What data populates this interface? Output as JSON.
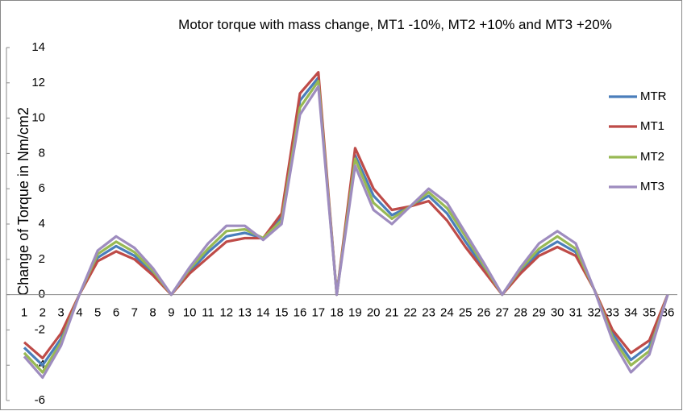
{
  "chart_data": {
    "type": "line",
    "title": "Motor torque with mass change, MT1 -10%, MT2 +10% and MT3 +20%",
    "y_label": "Change of Torque in Nm/cm2",
    "categories": [
      "1",
      "2",
      "3",
      "4",
      "5",
      "6",
      "7",
      "8",
      "9",
      "10",
      "11",
      "12",
      "13",
      "14",
      "15",
      "16",
      "17",
      "18",
      "19",
      "20",
      "21",
      "22",
      "23",
      "24",
      "25",
      "26",
      "27",
      "28",
      "29",
      "30",
      "31",
      "32",
      "33",
      "34",
      "35",
      "36"
    ],
    "series": [
      {
        "name": "MTR",
        "color": "#4a7ebb",
        "values": [
          -3.0,
          -4.0,
          -2.5,
          0,
          2.1,
          2.75,
          2.2,
          1.2,
          0,
          1.3,
          2.4,
          3.3,
          3.5,
          3.2,
          4.4,
          11.0,
          12.3,
          0,
          7.9,
          5.6,
          4.5,
          5.0,
          5.6,
          4.6,
          3.0,
          1.5,
          0,
          1.3,
          2.4,
          3.0,
          2.4,
          0.3,
          -2.2,
          -3.7,
          -2.9,
          0
        ]
      },
      {
        "name": "MT1",
        "color": "#be4b48",
        "values": [
          -2.7,
          -3.6,
          -2.2,
          0,
          1.9,
          2.45,
          2.0,
          1.1,
          0,
          1.2,
          2.1,
          3.0,
          3.2,
          3.2,
          4.6,
          11.4,
          12.6,
          0,
          8.3,
          6.0,
          4.8,
          5.0,
          5.3,
          4.2,
          2.7,
          1.35,
          0,
          1.2,
          2.2,
          2.7,
          2.2,
          0.3,
          -2.0,
          -3.3,
          -2.6,
          0
        ]
      },
      {
        "name": "MT2",
        "color": "#98b954",
        "values": [
          -3.3,
          -4.4,
          -2.7,
          0,
          2.3,
          3.0,
          2.4,
          1.35,
          0,
          1.45,
          2.6,
          3.6,
          3.7,
          3.2,
          4.2,
          10.6,
          12.1,
          0,
          7.7,
          5.2,
          4.3,
          5.0,
          5.8,
          4.9,
          3.3,
          1.65,
          0,
          1.45,
          2.6,
          3.3,
          2.6,
          0.3,
          -2.4,
          -4.0,
          -3.2,
          0
        ]
      },
      {
        "name": "MT3",
        "color": "#9e8cbf",
        "values": [
          -3.5,
          -4.7,
          -2.9,
          0,
          2.5,
          3.3,
          2.65,
          1.5,
          0,
          1.55,
          2.9,
          3.9,
          3.9,
          3.1,
          4.0,
          10.2,
          11.8,
          0,
          7.3,
          4.8,
          4.0,
          5.0,
          6.0,
          5.2,
          3.5,
          1.8,
          0,
          1.55,
          2.9,
          3.6,
          2.9,
          0.3,
          -2.6,
          -4.4,
          -3.4,
          0
        ]
      }
    ],
    "ylim": [
      -6,
      14
    ],
    "yticks": [
      -6,
      -4,
      -2,
      0,
      2,
      4,
      6,
      8,
      10,
      12,
      14
    ],
    "grid": false,
    "legend": "right"
  }
}
